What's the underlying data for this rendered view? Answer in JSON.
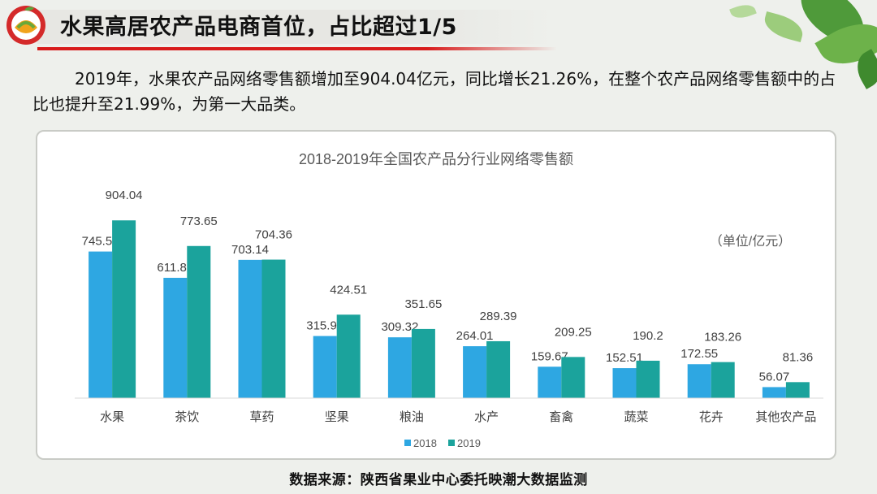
{
  "header": {
    "title": "水果高居农产品电商首位，占比超过1/5"
  },
  "intro": {
    "text": "2019年，水果农产品网络零售额增加至904.04亿元，同比增长21.26%，在整个农产品网络零售额中的占比也提升至21.99%，为第一大品类。"
  },
  "chart_data": {
    "type": "bar",
    "title": "2018-2019年全国农产品分行业网络零售额",
    "unit_label": "（单位/亿元）",
    "categories": [
      "水果",
      "茶饮",
      "草药",
      "坚果",
      "粮油",
      "水产",
      "畜禽",
      "蔬菜",
      "花卉",
      "其他农产品"
    ],
    "series": [
      {
        "name": "2018",
        "color": "#2ea7e2",
        "values": [
          745.56,
          611.89,
          703.14,
          315.93,
          309.32,
          264.01,
          159.67,
          152.51,
          172.55,
          56.07
        ]
      },
      {
        "name": "2019",
        "color": "#1ba39c",
        "values": [
          904.04,
          773.65,
          704.36,
          424.51,
          351.65,
          289.39,
          209.25,
          190.2,
          183.26,
          81.36
        ]
      }
    ],
    "ylim": [
      0,
      1000
    ],
    "grid": false,
    "legend_position": "bottom-center",
    "data_labels": true
  },
  "footer": {
    "source": "数据来源：陕西省果业中心委托映潮大数据监测"
  },
  "colors": {
    "accent_red": "#d81b1b",
    "series_2018": "#2ea7e2",
    "series_2019": "#1ba39c",
    "background": "#eef0ec"
  },
  "icons": {
    "logo": "fruit-logo-icon"
  }
}
